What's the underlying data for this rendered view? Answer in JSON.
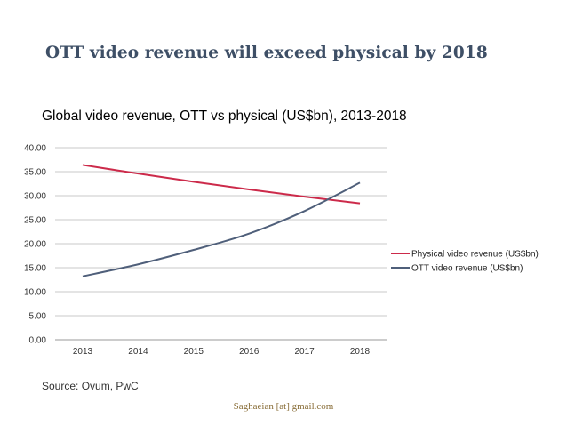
{
  "slide": {
    "title": "OTT video revenue will exceed physical by 2018",
    "source": "Source: Ovum, PwC",
    "footer": "Saghaeian [at] gmail.com"
  },
  "chart_data": {
    "type": "line",
    "title": "Global video revenue, OTT vs physical (US$bn), 2013-2018",
    "xlabel": "",
    "ylabel": "",
    "categories": [
      "2013",
      "2014",
      "2015",
      "2016",
      "2017",
      "2018"
    ],
    "ylim": [
      0,
      40
    ],
    "yticks": [
      "0.00",
      "5.00",
      "10.00",
      "15.00",
      "20.00",
      "25.00",
      "30.00",
      "35.00",
      "40.00"
    ],
    "grid": true,
    "legend_position": "right",
    "series": [
      {
        "name": "Physical video revenue (US$bn)",
        "color": "#cc2a4a",
        "values": [
          36.4,
          34.6,
          32.9,
          31.3,
          29.8,
          28.4
        ]
      },
      {
        "name": "OTT video revenue (US$bn)",
        "color": "#4f5f7a",
        "values": [
          13.2,
          15.7,
          18.7,
          22.1,
          26.8,
          32.7
        ]
      }
    ]
  }
}
